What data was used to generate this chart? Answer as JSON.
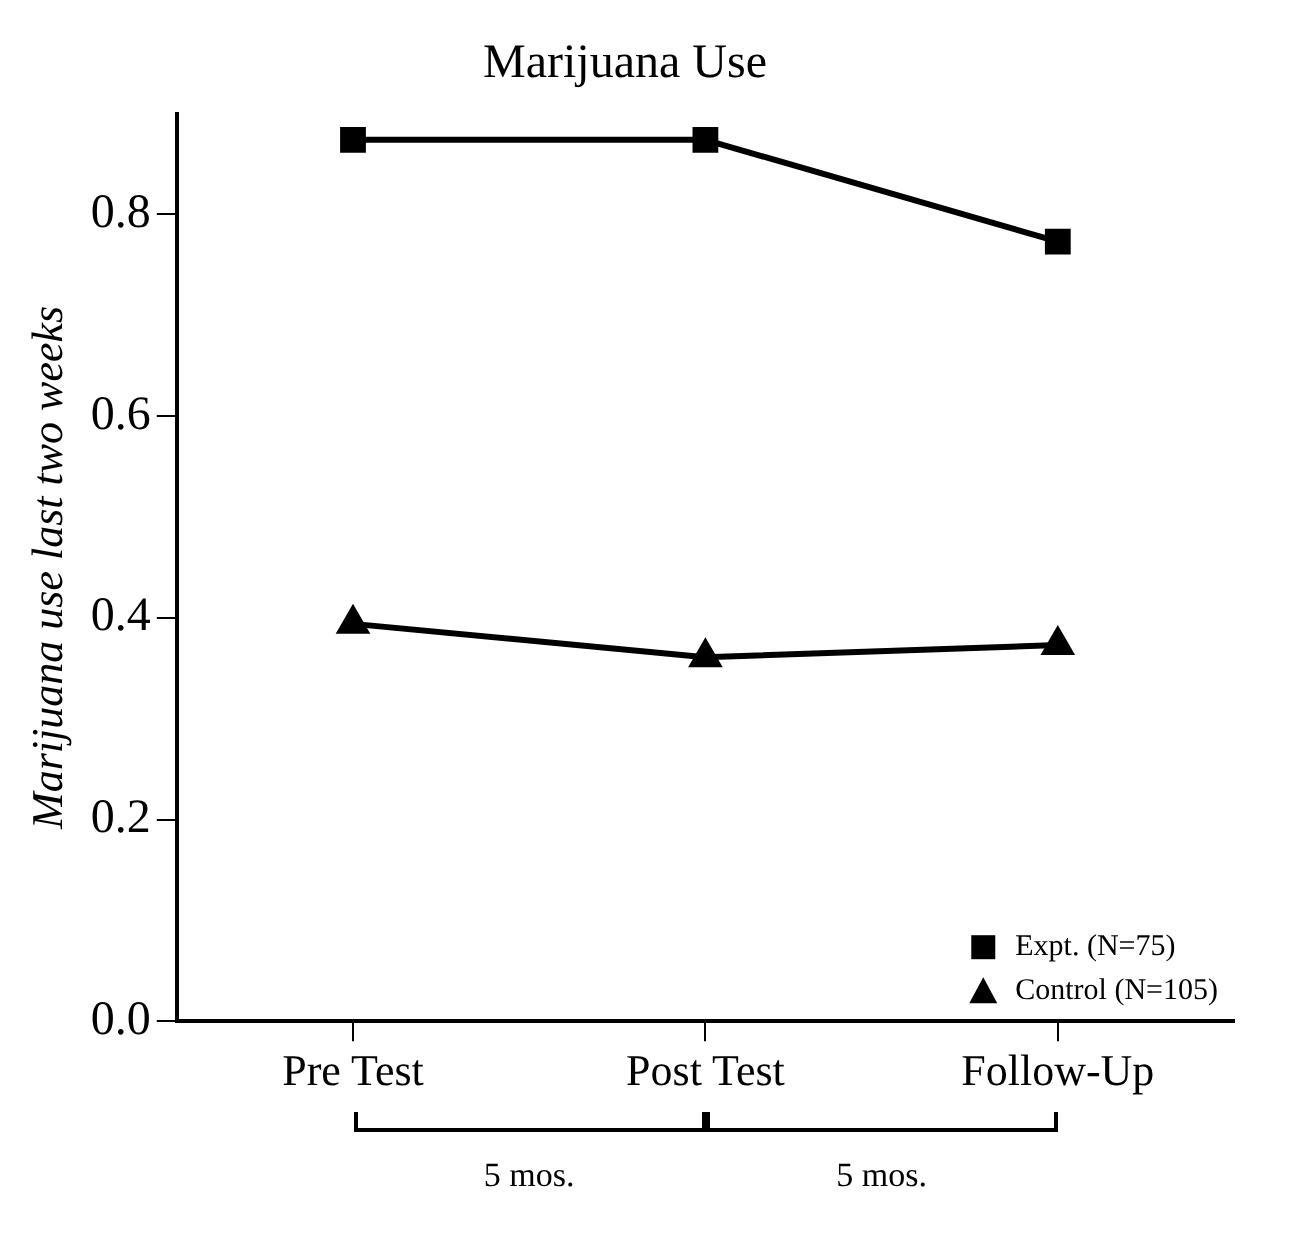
{
  "chart_data": {
    "type": "line",
    "title": "Marijuana Use",
    "ylabel": "Marijuana use last two weeks",
    "categories": [
      "Pre Test",
      "Post Test",
      "Follow-Up"
    ],
    "series": [
      {
        "name": "Expt. (N=75)",
        "color": "#000000",
        "marker": "square",
        "values": [
          0.874,
          0.874,
          0.773
        ]
      },
      {
        "name": "Control (N=105)",
        "color": "#000000",
        "marker": "triangle",
        "values": [
          0.394,
          0.361,
          0.373
        ]
      }
    ],
    "ylim": [
      0,
      0.9
    ],
    "yticks": [
      {
        "value": 0,
        "label": "0.0"
      },
      {
        "value": 0.2,
        "label": "0.2"
      },
      {
        "value": 0.4,
        "label": "0.4"
      },
      {
        "value": 0.6,
        "label": "0.6"
      },
      {
        "value": 0.8,
        "label": "0.8"
      }
    ],
    "grid": false,
    "legend": "bottom right",
    "line_style": "solid",
    "annotations": [
      "5 mos.",
      "5 mos."
    ]
  }
}
